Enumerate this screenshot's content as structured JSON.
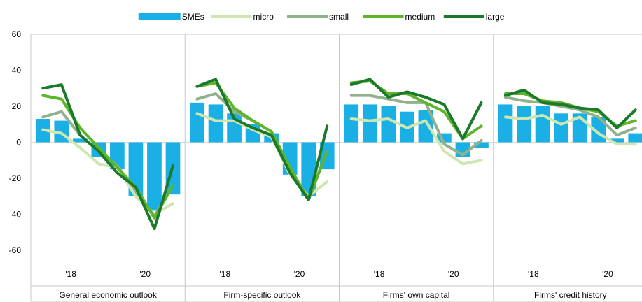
{
  "chart_data": {
    "type": "bar+line",
    "title": "",
    "xlabel": "",
    "ylabel": "",
    "ylim": [
      -70,
      60
    ],
    "yticks": [
      60,
      40,
      20,
      0,
      -20,
      -40,
      -60
    ],
    "grid": false,
    "legend_position": "top",
    "periods_per_panel": 8,
    "period_tick_labels": [
      {
        "index": 1,
        "label": "'18"
      },
      {
        "index": 5,
        "label": "'20"
      }
    ],
    "series": [
      {
        "name": "SMEs",
        "kind": "bar",
        "color": "#1ab0e6"
      },
      {
        "name": "micro",
        "kind": "line",
        "color": "#cfe6b2"
      },
      {
        "name": "small",
        "kind": "line",
        "color": "#8fb18e"
      },
      {
        "name": "medium",
        "kind": "line",
        "color": "#5cb52a"
      },
      {
        "name": "large",
        "kind": "line",
        "color": "#1a7a2a"
      }
    ],
    "panels": [
      {
        "label": "General economic outlook",
        "values": {
          "SMEs": [
            13,
            12,
            2,
            -8,
            -15,
            -30,
            -38,
            -29
          ],
          "micro": [
            7,
            5,
            -3,
            -12,
            -14,
            -30,
            -40,
            -34
          ],
          "small": [
            14,
            17,
            4,
            -5,
            -13,
            -27,
            -41,
            -24
          ],
          "medium": [
            26,
            24,
            8,
            -3,
            -14,
            -25,
            -42,
            -24
          ],
          "large": [
            30,
            32,
            4,
            -5,
            -17,
            -25,
            -48,
            -13
          ]
        }
      },
      {
        "label": "Firm-specific outlook",
        "values": {
          "SMEs": [
            22,
            21,
            16,
            10,
            5,
            -18,
            -30,
            -15
          ],
          "micro": [
            16,
            12,
            12,
            7,
            3,
            -18,
            -30,
            -22
          ],
          "small": [
            24,
            27,
            17,
            12,
            6,
            -16,
            -31,
            -5
          ],
          "medium": [
            31,
            33,
            19,
            12,
            6,
            -14,
            -32,
            -5
          ],
          "large": [
            31,
            35,
            13,
            8,
            4,
            -17,
            -32,
            9
          ]
        }
      },
      {
        "label": "Firms' own capital",
        "values": {
          "SMEs": [
            21,
            21,
            20,
            17,
            18,
            5,
            -8,
            -3
          ],
          "micro": [
            13,
            12,
            13,
            8,
            12,
            -5,
            -12,
            -10
          ],
          "small": [
            26,
            26,
            24,
            22,
            22,
            -1,
            -7,
            1
          ],
          "medium": [
            33,
            34,
            27,
            27,
            22,
            17,
            2,
            9
          ],
          "large": [
            32,
            35,
            25,
            28,
            25,
            21,
            2,
            22
          ]
        }
      },
      {
        "label": "Firms' credit history",
        "values": {
          "SMEs": [
            21,
            20,
            20,
            16,
            16,
            14,
            2,
            5
          ],
          "micro": [
            14,
            13,
            15,
            10,
            14,
            5,
            -1,
            -1
          ],
          "small": [
            25,
            23,
            22,
            20,
            18,
            14,
            4,
            8
          ],
          "medium": [
            27,
            27,
            23,
            22,
            19,
            17,
            9,
            12
          ],
          "large": [
            26,
            29,
            22,
            21,
            19,
            18,
            8,
            18
          ]
        }
      }
    ]
  }
}
